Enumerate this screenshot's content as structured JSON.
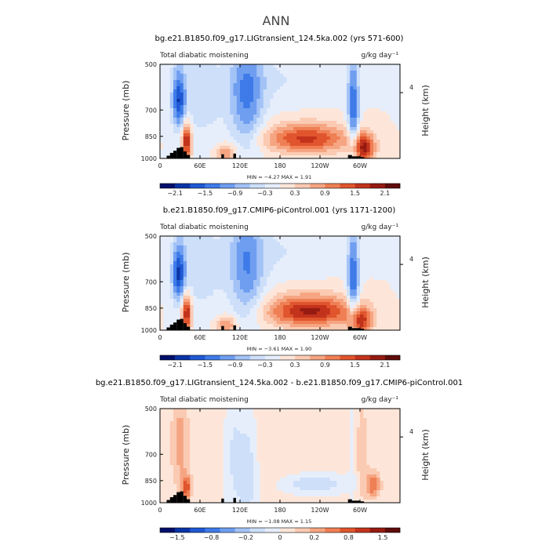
{
  "figure_title": "ANN",
  "chart_data": [
    {
      "type": "heatmap",
      "title": "bg.e21.B1850.f09_g17.LIGtransient_124.5ka.002 (yrs 571-600)",
      "left_label": "Total diabatic moistening",
      "units": "g/kg day⁻¹",
      "ylabel": "Pressure  (mb)",
      "right_label": "Height  (km)",
      "right_tick": "4",
      "yticks": [
        "500",
        "700",
        "850",
        "1000"
      ],
      "xticks": [
        "0",
        "60E",
        "120E",
        "180",
        "120W",
        "60W"
      ],
      "stats": "MIN =   −4.27   MAX =   1.91",
      "colorbar_labels": [
        "−2.1",
        "−1.5",
        "−0.9",
        "−0.3",
        "0.3",
        "0.9",
        "1.5",
        "2.1"
      ],
      "colorbar_colors": [
        "#00106a",
        "#0a34a6",
        "#1f58d4",
        "#3e7be8",
        "#6f9ef0",
        "#a3c3f7",
        "#cddff9",
        "#e6eefb",
        "#fde6d9",
        "#fbcab2",
        "#f6a582",
        "#ef7f54",
        "#e0552d",
        "#c2331c",
        "#951b12",
        "#5e0c0a"
      ],
      "features": [
        {
          "lon": 220,
          "p": 865,
          "v": 1.6,
          "sl": 45,
          "sp": 65
        },
        {
          "lon": 130,
          "p": 650,
          "v": -1.2,
          "sl": 18,
          "sp": 200
        },
        {
          "lon": 60,
          "p": 650,
          "v": -0.5,
          "sl": 25,
          "sp": 150
        },
        {
          "lon": 28,
          "p": 650,
          "v": -1.6,
          "sl": 7,
          "sp": 100
        },
        {
          "lon": 40,
          "p": 880,
          "v": 2.0,
          "sl": 5,
          "sp": 80
        },
        {
          "lon": 290,
          "p": 700,
          "v": -1.5,
          "sl": 6,
          "sp": 180
        },
        {
          "lon": 305,
          "p": 930,
          "v": 1.8,
          "sl": 12,
          "sp": 70
        },
        {
          "lon": 180,
          "p": 560,
          "v": -0.3,
          "sl": 60,
          "sp": 80
        },
        {
          "lon": 100,
          "p": 960,
          "v": 1.0,
          "sl": 10,
          "sp": 40
        }
      ]
    },
    {
      "type": "heatmap",
      "title": "b.e21.B1850.f09_g17.CMIP6-piControl.001 (yrs 1171-1200)",
      "left_label": "Total diabatic moistening",
      "units": "g/kg day⁻¹",
      "ylabel": "Pressure  (mb)",
      "right_label": "Height  (km)",
      "right_tick": "4",
      "yticks": [
        "500",
        "700",
        "850",
        "1000"
      ],
      "xticks": [
        "0",
        "60E",
        "120E",
        "180",
        "120W",
        "60W"
      ],
      "stats": "MIN =   −3.61   MAX =   1.90",
      "colorbar_labels": [
        "−2.1",
        "−1.5",
        "−0.9",
        "−0.3",
        "0.3",
        "0.9",
        "1.5",
        "2.1"
      ],
      "colorbar_colors": [
        "#00106a",
        "#0a34a6",
        "#1f58d4",
        "#3e7be8",
        "#6f9ef0",
        "#a3c3f7",
        "#cddff9",
        "#e6eefb",
        "#fde6d9",
        "#fbcab2",
        "#f6a582",
        "#ef7f54",
        "#e0552d",
        "#c2331c",
        "#951b12",
        "#5e0c0a"
      ],
      "features": [
        {
          "lon": 225,
          "p": 870,
          "v": 1.9,
          "sl": 45,
          "sp": 70
        },
        {
          "lon": 130,
          "p": 650,
          "v": -1.1,
          "sl": 18,
          "sp": 200
        },
        {
          "lon": 60,
          "p": 650,
          "v": -0.5,
          "sl": 25,
          "sp": 150
        },
        {
          "lon": 28,
          "p": 660,
          "v": -1.7,
          "sl": 7,
          "sp": 100
        },
        {
          "lon": 40,
          "p": 880,
          "v": 2.0,
          "sl": 5,
          "sp": 80
        },
        {
          "lon": 290,
          "p": 700,
          "v": -1.5,
          "sl": 6,
          "sp": 180
        },
        {
          "lon": 300,
          "p": 940,
          "v": 1.6,
          "sl": 12,
          "sp": 70
        },
        {
          "lon": 180,
          "p": 560,
          "v": -0.3,
          "sl": 60,
          "sp": 80
        },
        {
          "lon": 100,
          "p": 960,
          "v": 1.0,
          "sl": 10,
          "sp": 40
        }
      ]
    },
    {
      "type": "heatmap",
      "title": "bg.e21.B1850.f09_g17.LIGtransient_124.5ka.002 - b.e21.B1850.f09_g17.CMIP6-piControl.001",
      "left_label": "Total diabatic moistening",
      "units": "g/kg day⁻¹",
      "ylabel": "Pressure  (mb)",
      "right_label": "Height  (km)",
      "right_tick": "4",
      "yticks": [
        "500",
        "700",
        "850",
        "1000"
      ],
      "xticks": [
        "0",
        "60E",
        "120E",
        "180",
        "120W",
        "60W"
      ],
      "stats": "MIN =   −1.08   MAX =   1.15",
      "colorbar_labels": [
        "−1.5",
        "−0.8",
        "−0.2",
        "0",
        "0.2",
        "0.8",
        "1.5"
      ],
      "colorbar_colors": [
        "#00106a",
        "#0a34a6",
        "#1f58d4",
        "#3e7be8",
        "#6f9ef0",
        "#a3c3f7",
        "#cddff9",
        "#e6eefb",
        "#fde6d9",
        "#fbcab2",
        "#f6a582",
        "#ef7f54",
        "#e0552d",
        "#c2331c",
        "#951b12",
        "#5e0c0a"
      ],
      "features": [
        {
          "lon": 180,
          "p": 650,
          "v": 0.12,
          "sl": 80,
          "sp": 250
        },
        {
          "lon": 230,
          "p": 870,
          "v": -0.5,
          "sl": 30,
          "sp": 40
        },
        {
          "lon": 30,
          "p": 650,
          "v": 0.5,
          "sl": 10,
          "sp": 200
        },
        {
          "lon": 130,
          "p": 800,
          "v": -0.5,
          "sl": 10,
          "sp": 200
        },
        {
          "lon": 110,
          "p": 700,
          "v": -0.3,
          "sl": 8,
          "sp": 200
        },
        {
          "lon": 40,
          "p": 900,
          "v": 0.9,
          "sl": 5,
          "sp": 60
        },
        {
          "lon": 300,
          "p": 700,
          "v": 0.3,
          "sl": 10,
          "sp": 250
        },
        {
          "lon": 320,
          "p": 880,
          "v": 0.8,
          "sl": 8,
          "sp": 60
        },
        {
          "lon": 290,
          "p": 700,
          "v": -0.3,
          "sl": 5,
          "sp": 200
        }
      ]
    }
  ]
}
